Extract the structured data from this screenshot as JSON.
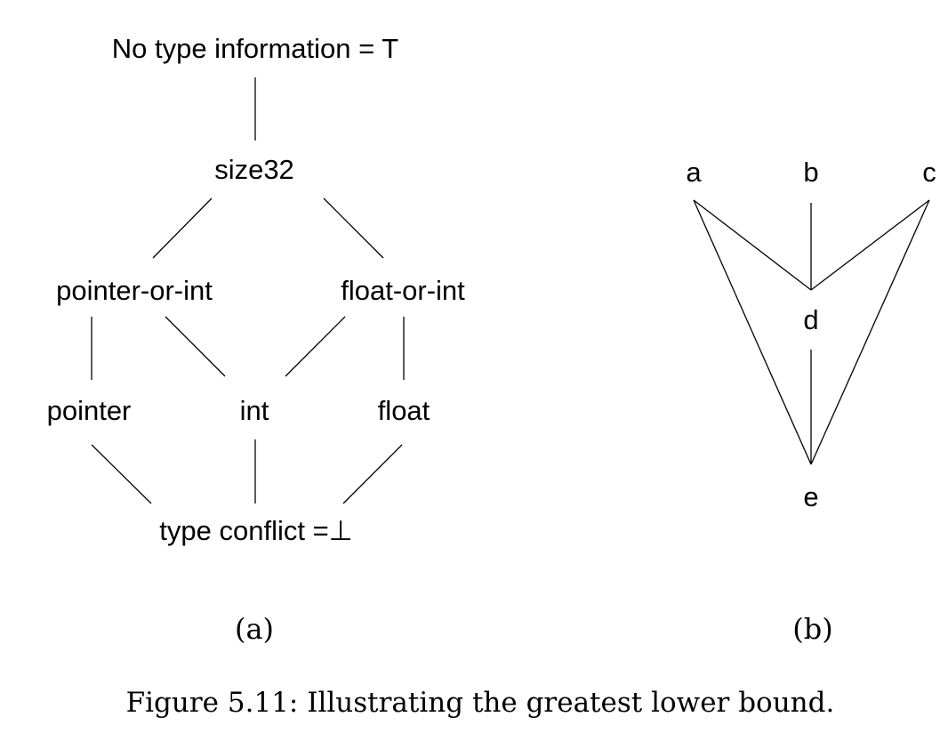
{
  "lattice_a": {
    "nodes": {
      "top": "No type information = T",
      "size32": "size32",
      "pointer_or_int": "pointer-or-int",
      "float_or_int": "float-or-int",
      "pointer": "pointer",
      "int": "int",
      "float": "float",
      "bottom": "type conflict =⊥"
    },
    "edges": [
      [
        "top",
        "size32"
      ],
      [
        "size32",
        "pointer_or_int"
      ],
      [
        "size32",
        "float_or_int"
      ],
      [
        "pointer_or_int",
        "pointer"
      ],
      [
        "pointer_or_int",
        "int"
      ],
      [
        "float_or_int",
        "int"
      ],
      [
        "float_or_int",
        "float"
      ],
      [
        "pointer",
        "bottom"
      ],
      [
        "int",
        "bottom"
      ],
      [
        "float",
        "bottom"
      ]
    ]
  },
  "lattice_b": {
    "nodes": {
      "a": "a",
      "b": "b",
      "c": "c",
      "d": "d",
      "e": "e"
    },
    "edges": [
      [
        "a",
        "d"
      ],
      [
        "b",
        "d"
      ],
      [
        "c",
        "d"
      ],
      [
        "d",
        "e"
      ],
      [
        "a",
        "e"
      ],
      [
        "c",
        "e"
      ]
    ]
  },
  "sublabels": {
    "a": "(a)",
    "b": "(b)"
  },
  "caption": "Figure 5.11: Illustrating the greatest lower bound."
}
